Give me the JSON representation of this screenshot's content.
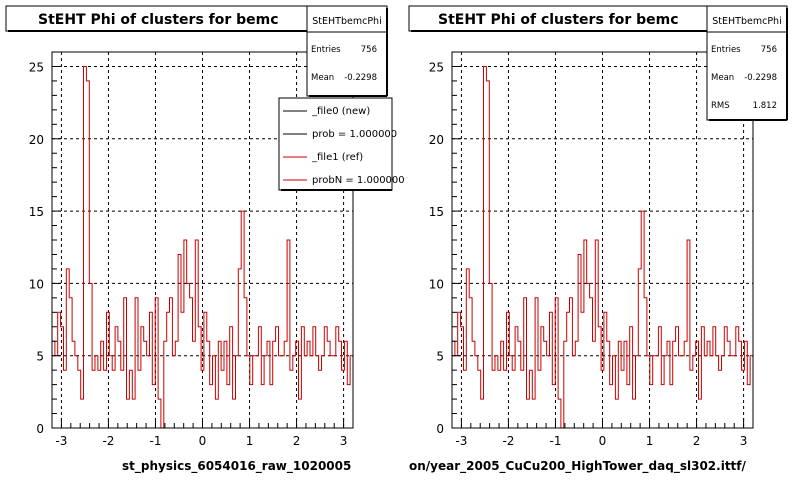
{
  "panels": [
    {
      "title": "StEHT Phi of clusters for bemc",
      "xlabel": "st_physics_6054016_raw_1020005",
      "stats": {
        "name": "StEHTbemcPhi",
        "entries_label": "Entries",
        "entries": "756",
        "mean_label": "Mean",
        "mean": "-0.2298"
      },
      "legend": [
        {
          "label": "_file0 (new)",
          "color": "#000000"
        },
        {
          "label": "prob = 1.000000",
          "color": "#000000"
        },
        {
          "label": "_file1 (ref)",
          "color": "#cc0000"
        },
        {
          "label": "probN = 1.000000",
          "color": "#cc0000"
        }
      ]
    },
    {
      "title": "StEHT Phi of clusters for bemc",
      "xlabel": "on/year_2005_CuCu200_HighTower_daq_sl302.ittf/",
      "stats": {
        "name": "StEHTbemcPhi",
        "entries_label": "Entries",
        "entries": "756",
        "mean_label": "Mean",
        "mean": "-0.2298",
        "rms_label": "RMS",
        "rms": "1.812"
      }
    }
  ],
  "chart_data": {
    "type": "line",
    "style": "step histogram",
    "xlim": [
      -3.2,
      3.2
    ],
    "ylim": [
      0,
      26
    ],
    "xticks": [
      -3,
      -2,
      -1,
      0,
      1,
      2,
      3
    ],
    "yticks": [
      0,
      5,
      10,
      15,
      20,
      25
    ],
    "grid": true,
    "series": [
      {
        "color": "#cc0000",
        "values": [
          6,
          5,
          8,
          7,
          4,
          11,
          9,
          6,
          5,
          4,
          2,
          25,
          24,
          10,
          4,
          5,
          4,
          6,
          4,
          8,
          5,
          4,
          7,
          6,
          4,
          9,
          2,
          4,
          2,
          9,
          4,
          7,
          6,
          5,
          8,
          3,
          9,
          2,
          0,
          6,
          8,
          9,
          5,
          6,
          12,
          8,
          13,
          10,
          9,
          6,
          13,
          7,
          4,
          8,
          6,
          3,
          5,
          2,
          6,
          4,
          6,
          3,
          7,
          2,
          5,
          11,
          15,
          9,
          5,
          3,
          5,
          5,
          7,
          3,
          5,
          6,
          3,
          6,
          7,
          5,
          5,
          6,
          13,
          4,
          5,
          6,
          2,
          7,
          5,
          6,
          5,
          7,
          5,
          4,
          5,
          7,
          6,
          5,
          5,
          7,
          6,
          4,
          6,
          3,
          5
        ]
      }
    ]
  }
}
